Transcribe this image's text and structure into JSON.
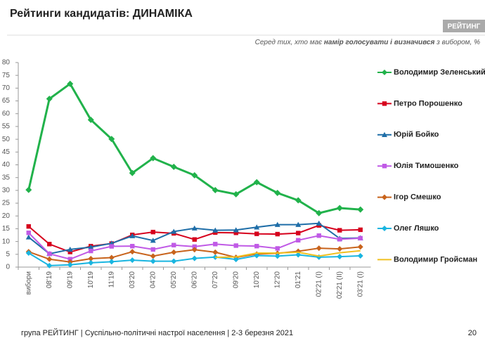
{
  "chart_data": {
    "type": "line",
    "title": "Рейтинги кандидатів: ДИНАМІКА",
    "subtitle_pre": "Серед тих, хто має ",
    "subtitle_bold": "намір голосувати і визначився",
    "subtitle_post": " з вибором, %",
    "logo": "РЕЙТИНГ",
    "footer": "група РЕЙТИНГ | Суспільно-політичні настрої населення  | 2-3 березня 2021",
    "page_number": "20",
    "categories": [
      "вибори",
      "08'19",
      "09'19",
      "10'19",
      "11'19",
      "03'20",
      "04'20",
      "05'20",
      "06'20",
      "07'20",
      "09'20",
      "10'20",
      "12'20",
      "01'21",
      "02'21 (I)",
      "02'21 (II)",
      "03'21 (I)"
    ],
    "ylim": [
      0,
      80
    ],
    "yticks": [
      0,
      5,
      10,
      15,
      20,
      25,
      30,
      35,
      40,
      45,
      50,
      55,
      60,
      65,
      70,
      75,
      80
    ],
    "grid": false,
    "series": [
      {
        "name": "Володимир Зеленський",
        "color": "#21b24b",
        "marker": "diamond",
        "values": [
          30.2,
          65.8,
          71.7,
          57.6,
          50.1,
          36.8,
          42.6,
          39.2,
          35.9,
          30.1,
          28.5,
          33.2,
          29.0,
          26.1,
          21.1,
          23.1,
          22.5
        ]
      },
      {
        "name": "Петро Порошенко",
        "color": "#d6001c",
        "marker": "square",
        "values": [
          15.9,
          9.0,
          5.9,
          8.2,
          9.2,
          12.6,
          13.7,
          13.2,
          10.8,
          13.5,
          13.4,
          13.0,
          12.9,
          13.3,
          16.3,
          14.4,
          14.6
        ]
      },
      {
        "name": "Юрій Бойко",
        "color": "#1f6ea8",
        "marker": "triangle",
        "values": [
          11.7,
          5.2,
          6.9,
          7.8,
          9.3,
          12.2,
          10.4,
          13.9,
          15.2,
          14.4,
          14.5,
          15.6,
          16.6,
          16.6,
          17.1,
          11.2,
          11.4
        ]
      },
      {
        "name": "Юлія Тимошенко",
        "color": "#c05ae6",
        "marker": "square",
        "values": [
          13.4,
          5.2,
          3.1,
          6.3,
          8.1,
          8.2,
          6.9,
          8.6,
          8.0,
          9.0,
          8.4,
          8.2,
          7.3,
          10.5,
          12.3,
          10.9,
          11.3
        ]
      },
      {
        "name": "Ігор Смешко",
        "color": "#c8631c",
        "marker": "diamond",
        "values": [
          6.0,
          3.1,
          2.0,
          3.3,
          3.7,
          6.0,
          4.3,
          5.8,
          6.8,
          5.8,
          3.8,
          5.1,
          5.4,
          6.2,
          7.4,
          7.1,
          7.9
        ]
      },
      {
        "name": "Олег Ляшко",
        "color": "#19b5e0",
        "marker": "diamond",
        "values": [
          5.5,
          0.6,
          0.9,
          1.7,
          2.1,
          2.7,
          2.3,
          2.3,
          3.4,
          3.9,
          3.0,
          4.5,
          4.3,
          4.8,
          3.9,
          4.1,
          4.4
        ]
      },
      {
        "name": "Володимир Гройсман",
        "color": "#f0c020",
        "marker": "none",
        "values": [
          null,
          null,
          null,
          null,
          null,
          null,
          null,
          null,
          null,
          3.8,
          4.0,
          5.5,
          5.5,
          5.8,
          4.3,
          5.6,
          6.4
        ]
      }
    ]
  }
}
